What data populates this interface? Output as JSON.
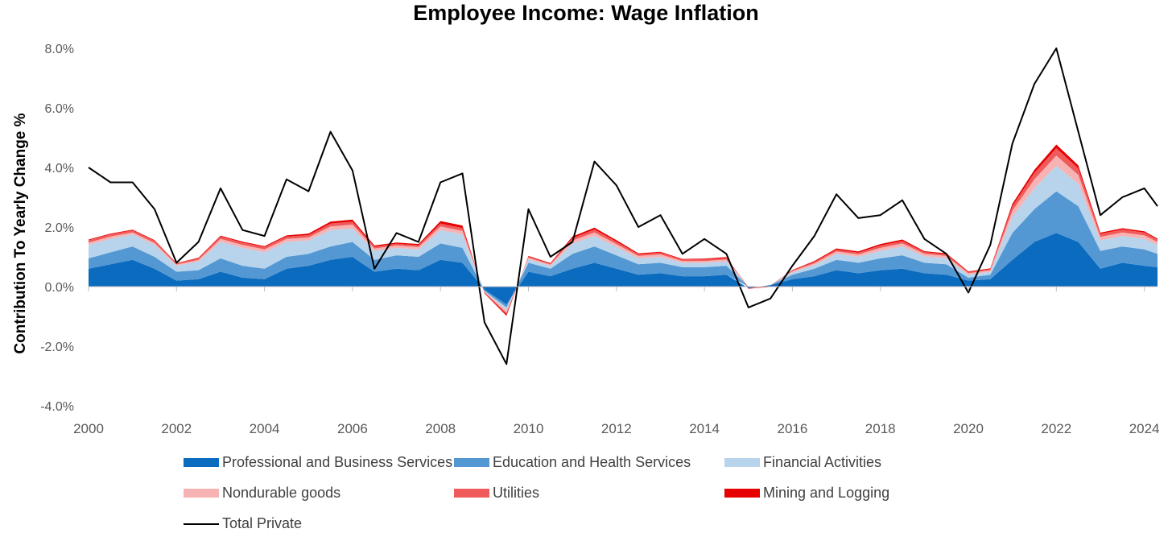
{
  "title": "Employee Income: Wage Inflation",
  "chart_data": {
    "type": "area",
    "title": "Employee Income: Wage Inflation",
    "xlabel": "",
    "ylabel": "Contribution To Yearly Change %",
    "xlim": [
      2000,
      2024.3
    ],
    "ylim": [
      -4.0,
      8.0
    ],
    "y_ticks": [
      "8.0%",
      "6.0%",
      "4.0%",
      "2.0%",
      "0.0%",
      "-2.0%",
      "-4.0%"
    ],
    "y_tick_values": [
      8,
      6,
      4,
      2,
      0,
      -2,
      -4
    ],
    "x_ticks": [
      "2000",
      "2002",
      "2004",
      "2006",
      "2008",
      "2010",
      "2012",
      "2014",
      "2016",
      "2018",
      "2020",
      "2022",
      "2024"
    ],
    "x_tick_values": [
      2000,
      2002,
      2004,
      2006,
      2008,
      2010,
      2012,
      2014,
      2016,
      2018,
      2020,
      2022,
      2024
    ],
    "grid": false,
    "legend_position": "bottom",
    "x": [
      2000.0,
      2000.5,
      2001.0,
      2001.5,
      2002.0,
      2002.5,
      2003.0,
      2003.5,
      2004.0,
      2004.5,
      2005.0,
      2005.5,
      2006.0,
      2006.5,
      2007.0,
      2007.5,
      2008.0,
      2008.5,
      2009.0,
      2009.5,
      2010.0,
      2010.5,
      2011.0,
      2011.5,
      2012.0,
      2012.5,
      2013.0,
      2013.5,
      2014.0,
      2014.5,
      2015.0,
      2015.5,
      2016.0,
      2016.5,
      2017.0,
      2017.5,
      2018.0,
      2018.5,
      2019.0,
      2019.5,
      2020.0,
      2020.5,
      2021.0,
      2021.5,
      2022.0,
      2022.5,
      2023.0,
      2023.5,
      2024.0,
      2024.3
    ],
    "series": [
      {
        "name": "Professional and Business Services",
        "kind": "area",
        "color": "#0b6bbf",
        "values": [
          0.6,
          0.75,
          0.9,
          0.6,
          0.2,
          0.25,
          0.5,
          0.3,
          0.25,
          0.6,
          0.7,
          0.9,
          1.0,
          0.5,
          0.6,
          0.55,
          0.9,
          0.8,
          -0.1,
          -0.6,
          0.5,
          0.35,
          0.6,
          0.8,
          0.6,
          0.4,
          0.45,
          0.35,
          0.35,
          0.4,
          -0.05,
          0.05,
          0.25,
          0.35,
          0.55,
          0.45,
          0.55,
          0.6,
          0.45,
          0.4,
          0.2,
          0.25,
          0.9,
          1.5,
          1.8,
          1.5,
          0.6,
          0.8,
          0.7,
          0.65
        ]
      },
      {
        "name": "Education and Health Services",
        "kind": "area",
        "color": "#5398d3",
        "values": [
          0.35,
          0.4,
          0.45,
          0.4,
          0.3,
          0.3,
          0.45,
          0.4,
          0.35,
          0.4,
          0.4,
          0.45,
          0.5,
          0.4,
          0.45,
          0.45,
          0.55,
          0.5,
          -0.05,
          -0.1,
          0.3,
          0.25,
          0.5,
          0.55,
          0.45,
          0.35,
          0.35,
          0.3,
          0.3,
          0.3,
          0.0,
          0.0,
          0.15,
          0.25,
          0.35,
          0.35,
          0.4,
          0.45,
          0.35,
          0.35,
          0.1,
          0.15,
          0.9,
          1.1,
          1.4,
          1.2,
          0.6,
          0.55,
          0.55,
          0.45
        ]
      },
      {
        "name": "Financial Activities",
        "kind": "area",
        "color": "#b7d4ec",
        "values": [
          0.45,
          0.45,
          0.4,
          0.4,
          0.2,
          0.3,
          0.55,
          0.6,
          0.55,
          0.5,
          0.45,
          0.55,
          0.45,
          0.3,
          0.25,
          0.25,
          0.45,
          0.45,
          -0.02,
          -0.1,
          0.12,
          0.1,
          0.35,
          0.35,
          0.28,
          0.2,
          0.2,
          0.15,
          0.15,
          0.15,
          0.0,
          0.0,
          0.08,
          0.12,
          0.2,
          0.2,
          0.25,
          0.3,
          0.22,
          0.2,
          0.1,
          0.1,
          0.55,
          0.7,
          0.85,
          0.75,
          0.35,
          0.35,
          0.35,
          0.3
        ]
      },
      {
        "name": "Nondurable goods",
        "kind": "area",
        "color": "#f7b3b3",
        "values": [
          0.08,
          0.08,
          0.07,
          0.07,
          0.04,
          0.05,
          0.1,
          0.1,
          0.1,
          0.1,
          0.1,
          0.12,
          0.13,
          0.08,
          0.08,
          0.08,
          0.12,
          0.12,
          -0.02,
          -0.08,
          0.05,
          0.04,
          0.1,
          0.12,
          0.1,
          0.08,
          0.08,
          0.06,
          0.06,
          0.06,
          0.0,
          0.0,
          0.04,
          0.06,
          0.08,
          0.08,
          0.1,
          0.1,
          0.08,
          0.08,
          0.05,
          0.05,
          0.2,
          0.3,
          0.35,
          0.3,
          0.12,
          0.12,
          0.12,
          0.1
        ]
      },
      {
        "name": "Utilities",
        "kind": "area",
        "color": "#f05a5a",
        "values": [
          0.08,
          0.08,
          0.07,
          0.07,
          0.04,
          0.05,
          0.08,
          0.08,
          0.08,
          0.08,
          0.08,
          0.1,
          0.1,
          0.06,
          0.06,
          0.06,
          0.1,
          0.1,
          -0.02,
          -0.05,
          0.04,
          0.03,
          0.08,
          0.1,
          0.08,
          0.06,
          0.06,
          0.05,
          0.05,
          0.05,
          0.0,
          0.0,
          0.03,
          0.05,
          0.06,
          0.06,
          0.08,
          0.08,
          0.06,
          0.06,
          0.04,
          0.04,
          0.15,
          0.22,
          0.25,
          0.22,
          0.1,
          0.1,
          0.1,
          0.08
        ]
      },
      {
        "name": "Mining and Logging",
        "kind": "area",
        "color": "#e60000",
        "values": [
          0.02,
          0.02,
          0.02,
          0.02,
          0.01,
          0.02,
          0.03,
          0.03,
          0.03,
          0.04,
          0.05,
          0.06,
          0.07,
          0.04,
          0.04,
          0.04,
          0.08,
          0.08,
          -0.02,
          -0.05,
          0.02,
          0.02,
          0.05,
          0.06,
          0.05,
          0.03,
          0.03,
          0.02,
          0.03,
          0.03,
          -0.02,
          -0.01,
          0.01,
          0.03,
          0.04,
          0.04,
          0.05,
          0.05,
          0.03,
          0.03,
          0.02,
          0.02,
          0.08,
          0.1,
          0.12,
          0.1,
          0.04,
          0.04,
          0.04,
          0.03
        ]
      },
      {
        "name": "Total Private",
        "kind": "line",
        "color": "#000000",
        "values": [
          4.0,
          3.5,
          3.5,
          2.6,
          0.8,
          1.5,
          3.3,
          1.9,
          1.7,
          3.6,
          3.2,
          5.2,
          3.9,
          0.6,
          1.8,
          1.5,
          3.5,
          3.8,
          -1.2,
          -2.6,
          2.6,
          1.0,
          1.5,
          4.2,
          3.4,
          2.0,
          2.4,
          1.1,
          1.6,
          1.1,
          -0.7,
          -0.4,
          0.7,
          1.7,
          3.1,
          2.3,
          2.4,
          2.9,
          1.6,
          1.1,
          -0.2,
          1.4,
          4.8,
          6.8,
          8.0,
          5.2,
          2.4,
          3.0,
          3.3,
          2.7
        ]
      }
    ]
  }
}
